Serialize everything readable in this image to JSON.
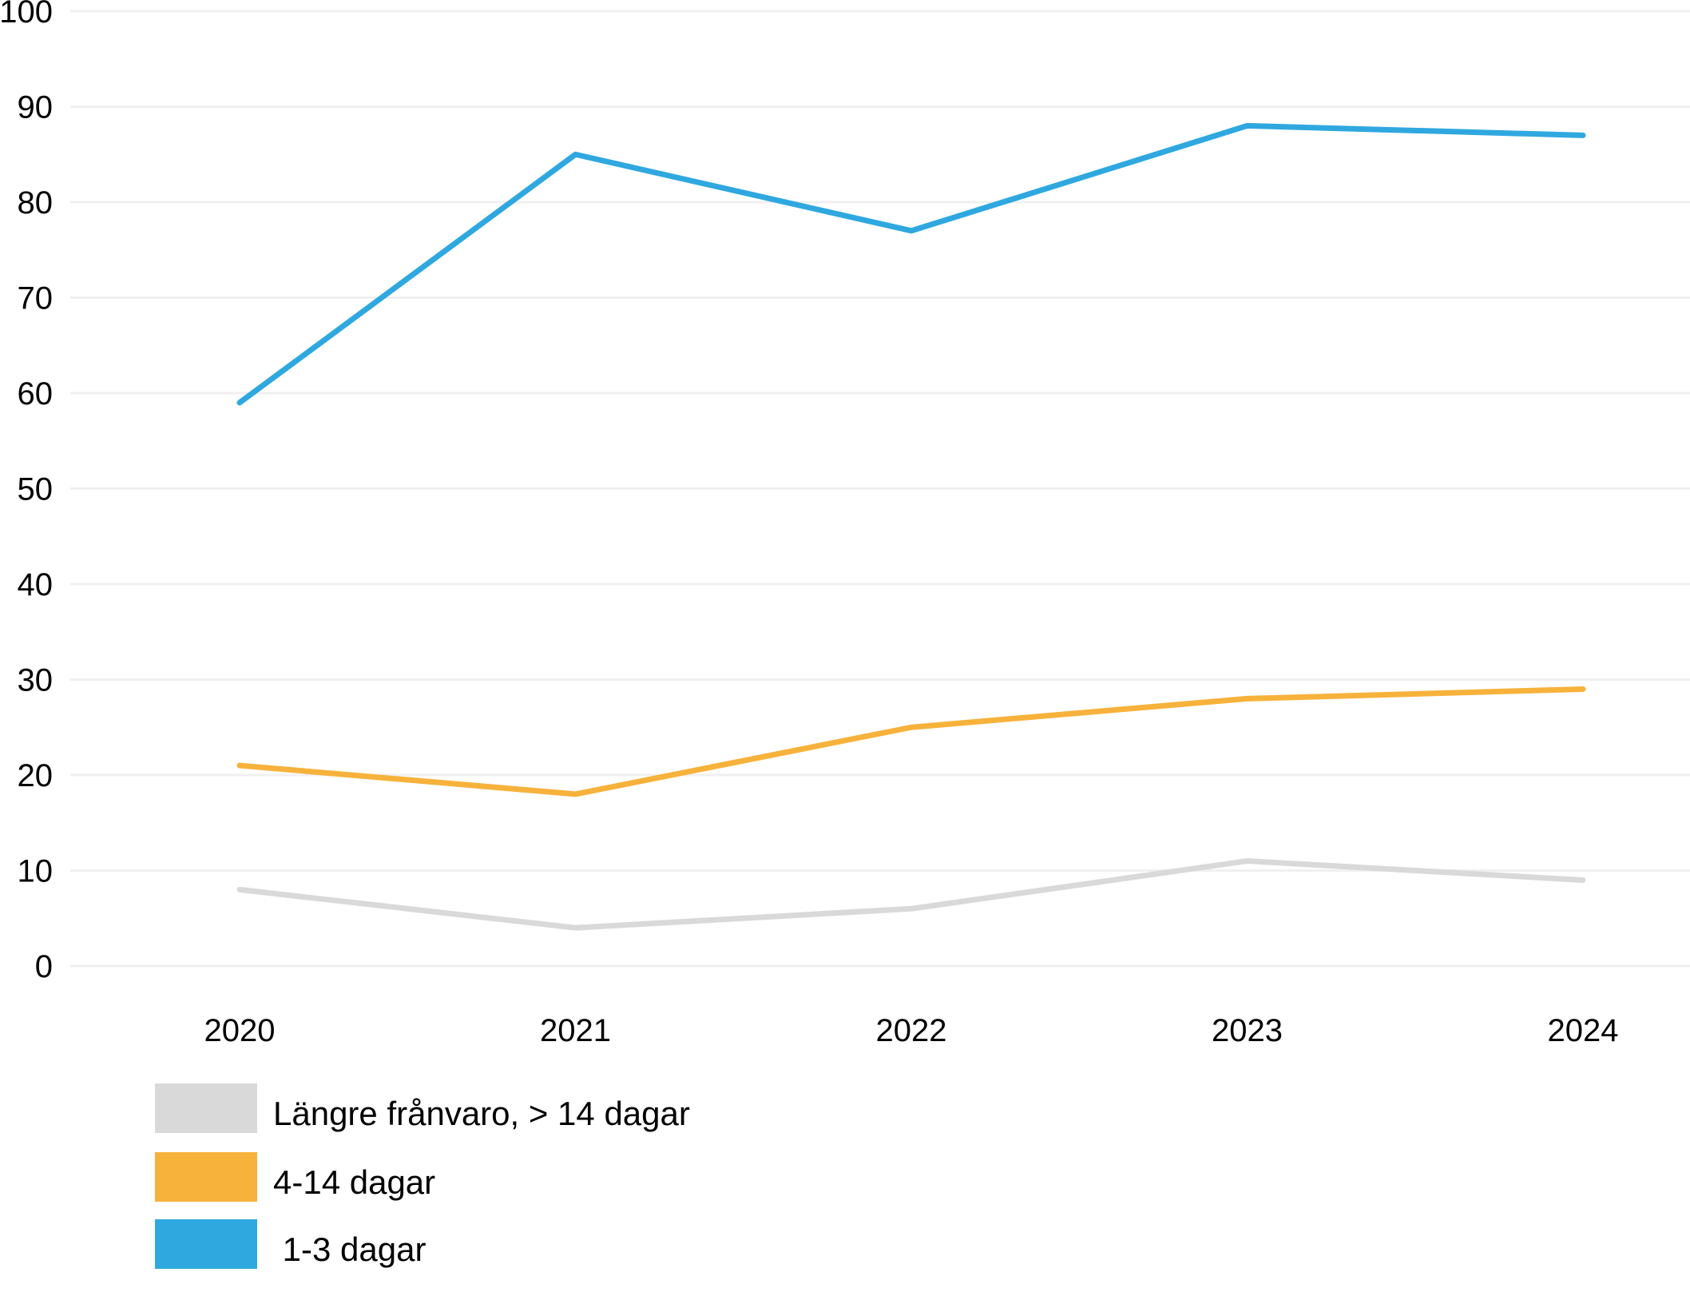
{
  "chart_data": {
    "type": "line",
    "categories": [
      "2020",
      "2021",
      "2022",
      "2023",
      "2024"
    ],
    "yticks": [
      "0",
      "10",
      "20",
      "30",
      "40",
      "50",
      "60",
      "70",
      "80",
      "90",
      "100"
    ],
    "ylim": [
      0,
      100
    ],
    "grid": true,
    "legend_position": "bottom-left",
    "series": [
      {
        "name": "Längre frånvaro, > 14 dagar",
        "color": "#d9d9d9",
        "values": [
          8,
          4,
          6,
          11,
          9
        ]
      },
      {
        "name": "4-14 dagar",
        "color": "#f7b23b",
        "values": [
          21,
          18,
          25,
          28,
          29
        ]
      },
      {
        "name": " 1-3 dagar",
        "color": "#2fa8e0",
        "values": [
          59,
          85,
          77,
          88,
          87
        ]
      }
    ]
  },
  "legend": [
    {
      "label": "Längre frånvaro, > 14 dagar",
      "color": "#d9d9d9"
    },
    {
      "label": "4-14 dagar",
      "color": "#f7b23b"
    },
    {
      "label": " 1-3 dagar",
      "color": "#2fa8e0"
    }
  ]
}
